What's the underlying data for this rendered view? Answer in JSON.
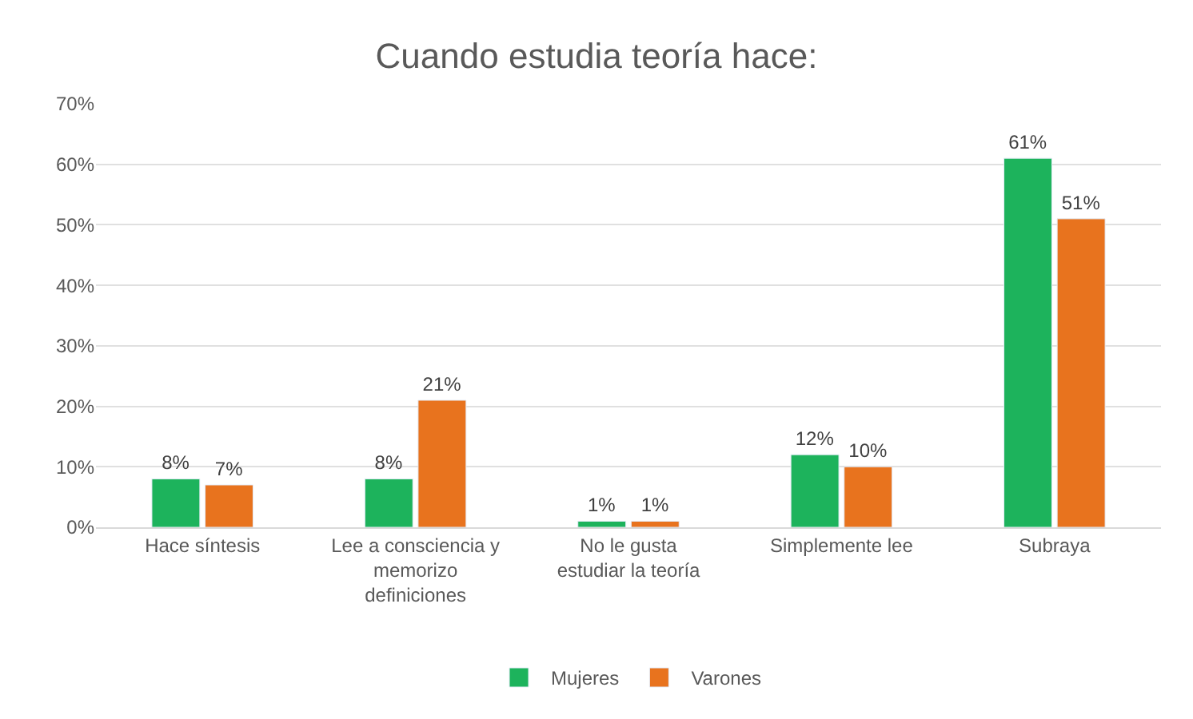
{
  "chart_data": {
    "type": "bar",
    "title": "Cuando estudia teoría hace:",
    "categories": [
      "Hace síntesis",
      "Lee a consciencia y memorizo definiciones",
      "No le gusta estudiar la teoría",
      "Simplemente lee",
      "Subraya"
    ],
    "series": [
      {
        "name": "Mujeres",
        "color": "#1db35c",
        "values": [
          8,
          8,
          1,
          12,
          61
        ],
        "value_labels": [
          "8%",
          "8%",
          "1%",
          "12%",
          "61%"
        ]
      },
      {
        "name": "Varones",
        "color": "#e8731e",
        "values": [
          7,
          21,
          1,
          10,
          51
        ],
        "value_labels": [
          "7%",
          "21%",
          "1%",
          "10%",
          "51%"
        ]
      }
    ],
    "ylim": [
      0,
      70
    ],
    "yticks": [
      {
        "value": 0,
        "label": "0%"
      },
      {
        "value": 10,
        "label": "10%"
      },
      {
        "value": 20,
        "label": "20%"
      },
      {
        "value": 30,
        "label": "30%"
      },
      {
        "value": 40,
        "label": "40%"
      },
      {
        "value": 50,
        "label": "50%"
      },
      {
        "value": 60,
        "label": "60%"
      },
      {
        "value": 70,
        "label": "70%"
      }
    ],
    "grid": "y",
    "legend": "bottom"
  }
}
